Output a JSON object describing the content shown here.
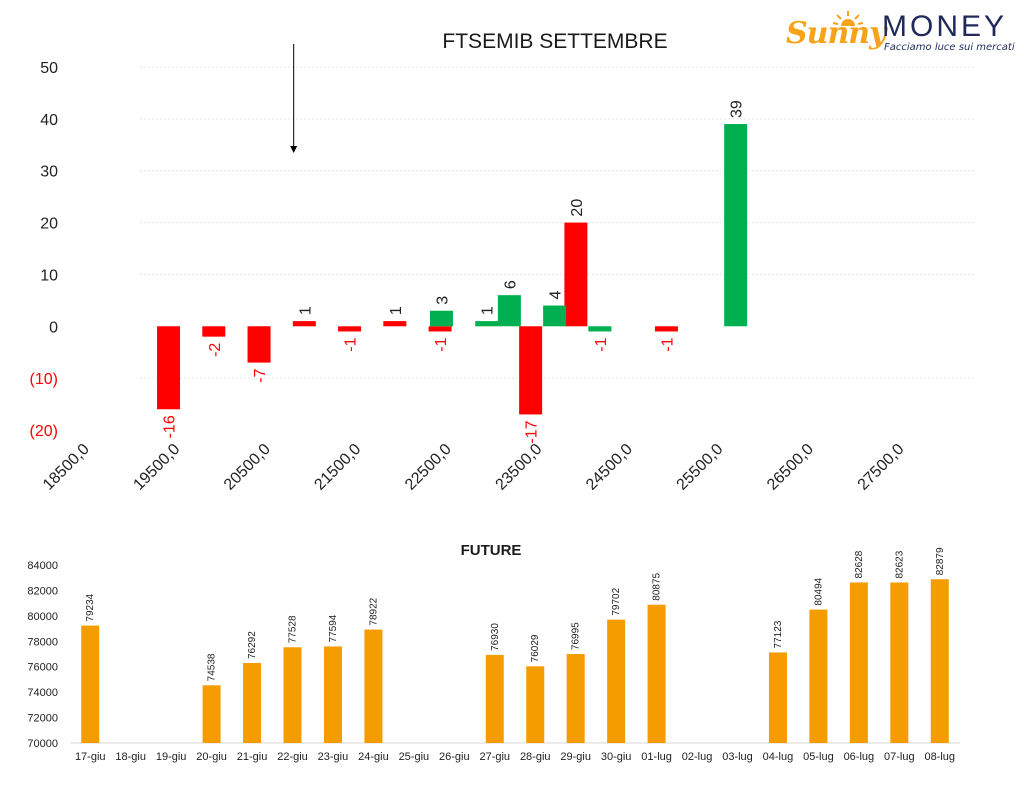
{
  "logo": {
    "brand_a": "Sunny",
    "brand_b": "MONEY",
    "tagline": "Facciamo luce sui mercati",
    "sun_color": "#f6a31a",
    "text_color": "#1f2a5a"
  },
  "colors": {
    "negative": "#ff0000",
    "positive": "#00b050",
    "future": "#f59c00",
    "axis_negative_label": "#ff0000"
  },
  "chart_data": [
    {
      "type": "bar",
      "title": "FTSEMIB SETTEMBRE",
      "xlabel": "",
      "ylabel": "",
      "xlim": [
        18500,
        28000
      ],
      "ylim": [
        -20,
        50
      ],
      "y_ticks": [
        50,
        40,
        30,
        20,
        10,
        0,
        -10,
        -20
      ],
      "y_tick_labels": [
        "50",
        "40",
        "30",
        "20",
        "10",
        "0",
        "(10)",
        "(20)"
      ],
      "x_ticks": [
        18500,
        19500,
        20500,
        21500,
        22500,
        23500,
        24500,
        25500,
        26500,
        27500
      ],
      "x_tick_labels": [
        "18500,0",
        "19500,0",
        "20500,0",
        "21500,0",
        "22500,0",
        "23500,0",
        "24500,0",
        "25500,0",
        "26500,0",
        "27500,0"
      ],
      "grid": true,
      "marker_arrow_at": 20750,
      "series": [
        {
          "x": [
            19500,
            20000,
            20500,
            21000,
            21500,
            22000,
            22500,
            23500,
            24000,
            25000
          ],
          "values": [
            -16,
            -2,
            -7,
            1,
            -1,
            1,
            -1,
            -17,
            20,
            -1
          ],
          "color": "red"
        },
        {
          "x": [
            22250,
            22750,
            23000,
            23500,
            24000,
            25500
          ],
          "values": [
            3,
            1,
            6,
            4,
            -1,
            39
          ],
          "color": "green"
        }
      ]
    },
    {
      "type": "bar",
      "title": "FUTURE",
      "xlabel": "",
      "ylabel": "",
      "ylim": [
        70000,
        84000
      ],
      "y_ticks": [
        84000,
        82000,
        80000,
        78000,
        76000,
        74000,
        72000,
        70000
      ],
      "categories": [
        "17-giu",
        "18-giu",
        "19-giu",
        "20-giu",
        "21-giu",
        "22-giu",
        "23-giu",
        "24-giu",
        "25-giu",
        "26-giu",
        "27-giu",
        "28-giu",
        "29-giu",
        "30-giu",
        "01-lug",
        "02-lug",
        "03-lug",
        "04-lug",
        "05-lug",
        "06-lug",
        "07-lug",
        "08-lug"
      ],
      "values": [
        79234,
        null,
        null,
        74538,
        76292,
        77528,
        77594,
        78922,
        null,
        null,
        76930,
        76029,
        76995,
        79702,
        80875,
        null,
        null,
        77123,
        80494,
        82628,
        82623,
        82879
      ],
      "grid": false
    }
  ]
}
